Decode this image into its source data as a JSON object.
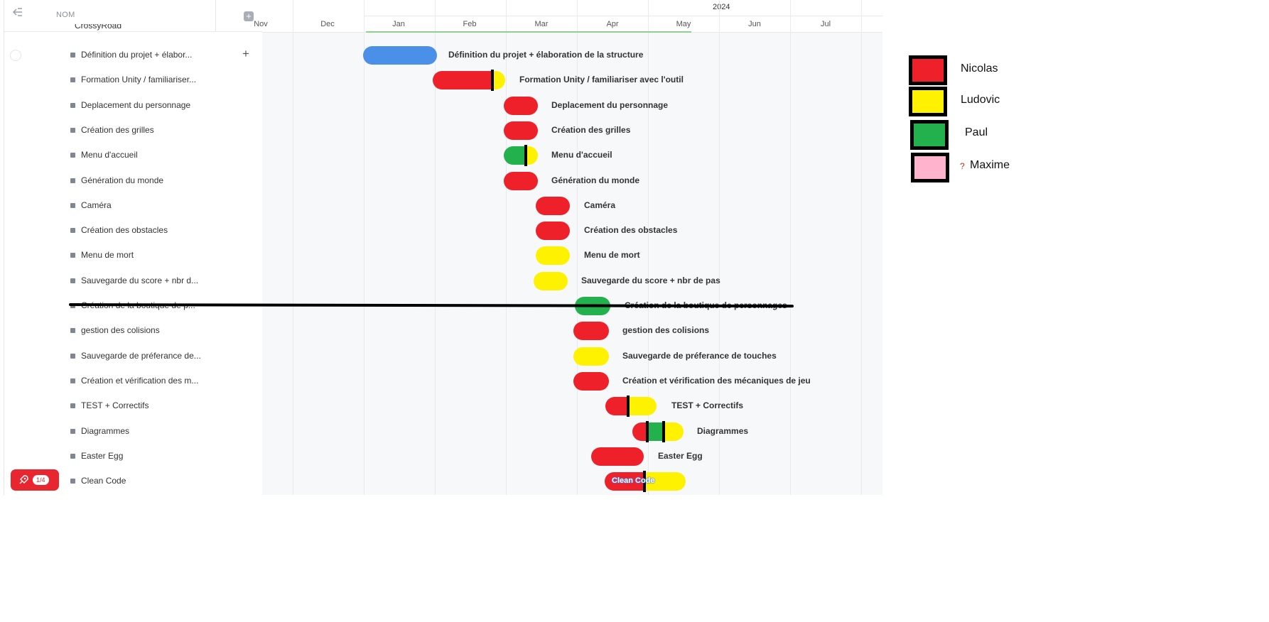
{
  "left_panel": {
    "column_header": "NOM",
    "collapse_icon": "collapse-sidebar-icon",
    "add_icon": "add-column-icon",
    "group_name": "CrossyRoad",
    "rows": [
      {
        "label": "Définition du projet + élabor..."
      },
      {
        "label": "Formation Unity / familiariser..."
      },
      {
        "label": "Deplacement du personnage"
      },
      {
        "label": "Création des grilles"
      },
      {
        "label": "Menu d'accueil"
      },
      {
        "label": "Génération du monde"
      },
      {
        "label": "Caméra"
      },
      {
        "label": "Création des obstacles"
      },
      {
        "label": "Menu de mort"
      },
      {
        "label": "Sauvegarde du score + nbr d..."
      },
      {
        "label": "Création de la boutique de p..."
      },
      {
        "label": "gestion des colisions"
      },
      {
        "label": "Sauvegarde de préferance de..."
      },
      {
        "label": "Création et vérification des m..."
      },
      {
        "label": "TEST + Correctifs"
      },
      {
        "label": "Diagrammes"
      },
      {
        "label": "Easter Egg"
      },
      {
        "label": "Clean Code"
      }
    ]
  },
  "onboarding_badge": {
    "icon": "rocket-icon",
    "count": "1/4"
  },
  "timeline": {
    "year": "2024",
    "months": [
      "Nov",
      "Dec",
      "Jan",
      "Feb",
      "Mar",
      "Apr",
      "May",
      "Jun",
      "Jul"
    ],
    "tasks": [
      {
        "label": "Définition du projet + élaboration de la structure",
        "colors": [
          "#4a90e8"
        ]
      },
      {
        "label": "Formation Unity / familiariser avec l'outil",
        "colors": [
          "#ee2029",
          "#fff200"
        ]
      },
      {
        "label": "Deplacement du personnage",
        "colors": [
          "#ee2029"
        ]
      },
      {
        "label": "Création des grilles",
        "colors": [
          "#ee2029"
        ]
      },
      {
        "label": "Menu d'accueil",
        "colors": [
          "#22b14c",
          "#fff200"
        ]
      },
      {
        "label": "Génération du monde",
        "colors": [
          "#ee2029"
        ]
      },
      {
        "label": "Caméra",
        "colors": [
          "#ee2029"
        ]
      },
      {
        "label": "Création des obstacles",
        "colors": [
          "#ee2029"
        ]
      },
      {
        "label": "Menu de mort",
        "colors": [
          "#fff200"
        ]
      },
      {
        "label": "Sauvegarde du score + nbr de pas",
        "colors": [
          "#fff200"
        ]
      },
      {
        "label": "Création de la boutique de personnages",
        "colors": [
          "#22b14c"
        ],
        "struck": true
      },
      {
        "label": "gestion des colisions",
        "colors": [
          "#ee2029"
        ]
      },
      {
        "label": "Sauvegarde de préferance de touches",
        "colors": [
          "#fff200"
        ]
      },
      {
        "label": "Création et vérification des mécaniques de jeu",
        "colors": [
          "#ee2029"
        ]
      },
      {
        "label": "TEST + Correctifs",
        "colors": [
          "#ee2029",
          "#fff200"
        ]
      },
      {
        "label": "Diagrammes",
        "colors": [
          "#ee2029",
          "#22b14c",
          "#fff200"
        ]
      },
      {
        "label": "Easter Egg",
        "colors": [
          "#ee2029"
        ]
      },
      {
        "label": "Clean Code",
        "colors": [
          "#ee2029",
          "#fff200"
        ],
        "inbar": "Clean Code"
      }
    ]
  },
  "legend": [
    {
      "name": "Nicolas",
      "color": "#ee2029"
    },
    {
      "name": "Ludovic",
      "color": "#fff200"
    },
    {
      "name": "Paul",
      "color": "#22b14c"
    },
    {
      "name": "Maxime",
      "color": "#ffb3cc",
      "mark": "?"
    }
  ]
}
